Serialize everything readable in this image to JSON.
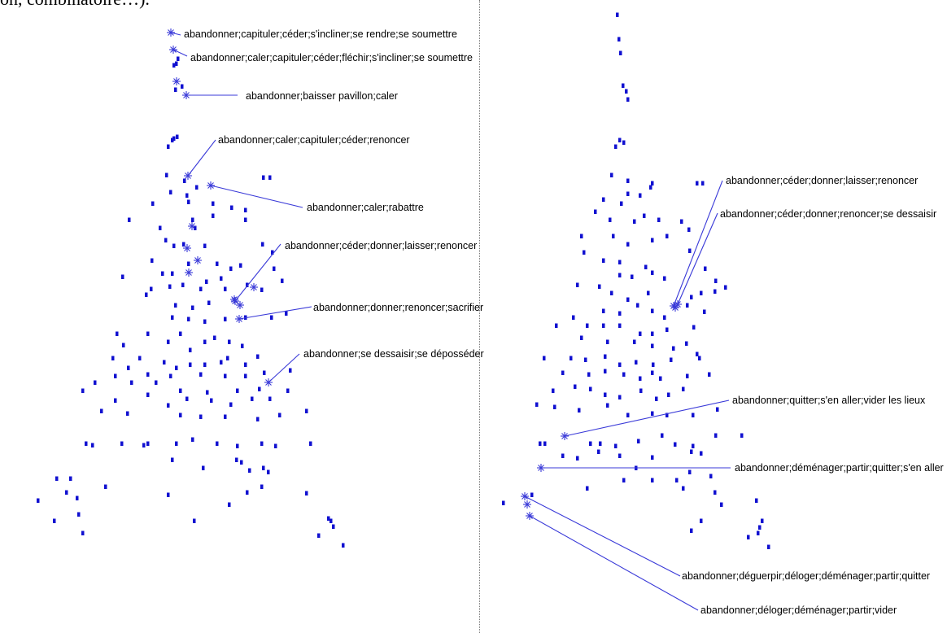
{
  "header": {
    "fragment_text": "on, combinatoire…)."
  },
  "chart_data": [
    {
      "type": "scatter",
      "point_color": "#1010d0",
      "marker_color": "#3a3ad8",
      "grid": false,
      "axes_visible": false,
      "annotations": [
        "abandonner;capituler;céder;s'incliner;se rendre;se soumettre",
        "abandonner;caler;capituler;céder;fléchir;s'incliner;se soumettre",
        "abandonner;baisser pavillon;caler",
        "abandonner;caler;capituler;céder;renoncer",
        "abandonner;caler;rabattre",
        "abandonner;céder;donner;laisser;renoncer",
        "abandonner;donner;renoncer;sacrifier",
        "abandonner;se dessaisir;se déposséder"
      ]
    },
    {
      "type": "scatter",
      "point_color": "#1010d0",
      "marker_color": "#3a3ad8",
      "grid": false,
      "axes_visible": false,
      "annotations": [
        "abandonner;céder;donner;laisser;renoncer",
        "abandonner;céder;donner;renoncer;se dessaisir",
        "abandonner;quitter;s'en aller;vider les lieux",
        "abandonner;déménager;partir;quitter;s'en aller",
        "abandonner;déguerpir;déloger;déménager;partir;quitter",
        "abandonner;déloger;déménager;partir;vider"
      ]
    }
  ]
}
